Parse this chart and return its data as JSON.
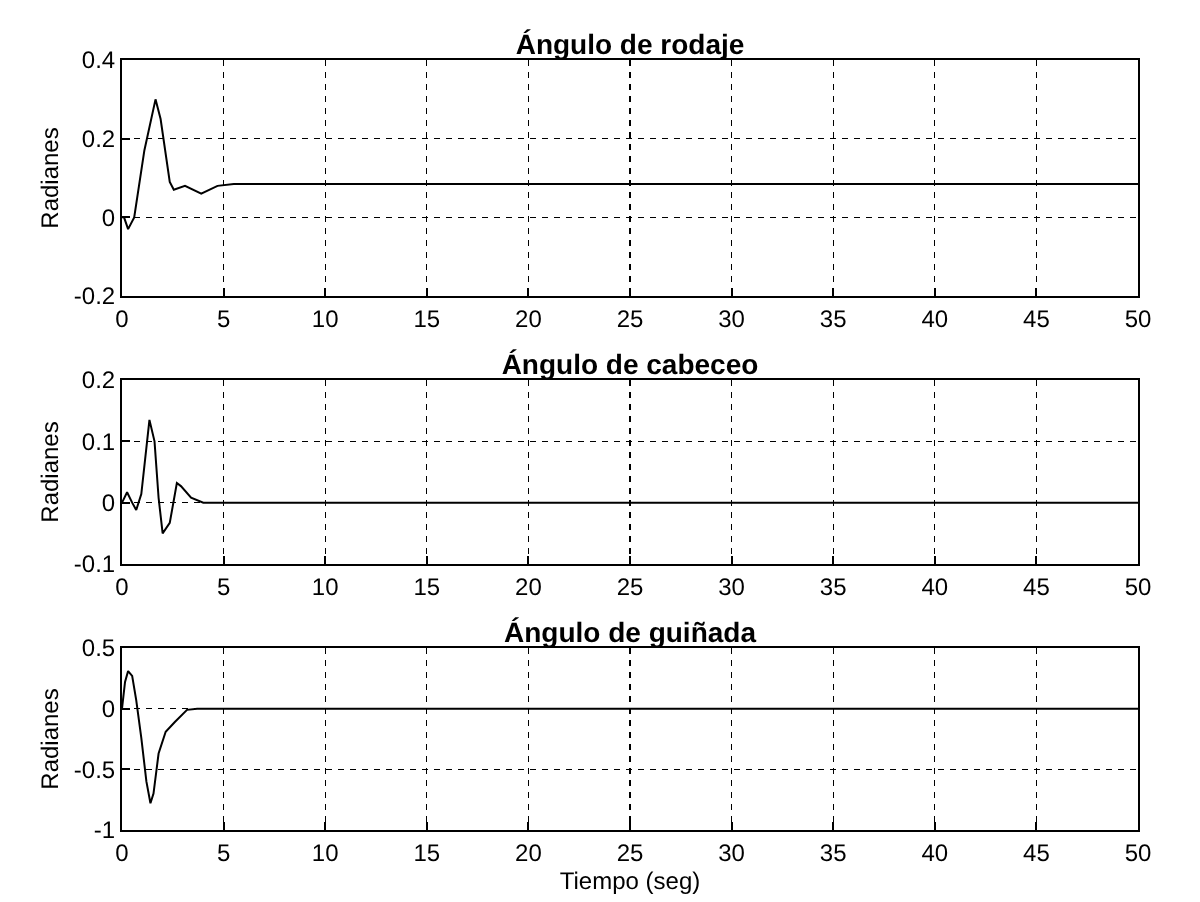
{
  "chart_data": [
    {
      "type": "line",
      "title": "Ángulo de rodaje",
      "ylabel": "Radianes",
      "x": [
        0,
        0.1,
        0.3,
        0.6,
        1.1,
        1.65,
        1.9,
        2.35,
        2.55,
        3.1,
        3.9,
        4.7,
        5.5,
        50
      ],
      "series": [
        {
          "color": "#000000",
          "values": [
            0,
            0,
            -0.03,
            0,
            0.17,
            0.3,
            0.25,
            0.09,
            0.07,
            0.08,
            0.06,
            0.08,
            0.085,
            0.085
          ]
        }
      ],
      "xlim": [
        0,
        50
      ],
      "xticks": [
        0,
        5,
        10,
        15,
        20,
        25,
        30,
        35,
        40,
        45,
        50
      ],
      "ylim": [
        -0.2,
        0.4
      ],
      "yticks": [
        -0.2,
        0,
        0.2,
        0.4
      ],
      "grid": true
    },
    {
      "type": "line",
      "title": "Ángulo de cabeceo",
      "ylabel": "Radianes",
      "x": [
        0,
        0.25,
        0.5,
        0.7,
        0.95,
        1.35,
        1.6,
        1.8,
        2.0,
        2.35,
        2.7,
        2.9,
        3.4,
        4,
        50
      ],
      "series": [
        {
          "color": "#000000",
          "values": [
            0,
            0.017,
            0,
            -0.012,
            0.014,
            0.135,
            0.1,
            0.008,
            -0.05,
            -0.033,
            0.032,
            0.027,
            0.008,
            0,
            0
          ]
        }
      ],
      "xlim": [
        0,
        50
      ],
      "xticks": [
        0,
        5,
        10,
        15,
        20,
        25,
        30,
        35,
        40,
        45,
        50
      ],
      "ylim": [
        -0.1,
        0.2
      ],
      "yticks": [
        -0.1,
        0,
        0.1,
        0.2
      ],
      "grid": true
    },
    {
      "type": "line",
      "title": "Ángulo de guiñada",
      "xlabel": "Tiempo (seg)",
      "ylabel": "Radianes",
      "x": [
        0,
        0.15,
        0.3,
        0.5,
        0.7,
        0.95,
        1.2,
        1.4,
        1.55,
        1.8,
        2.15,
        2.6,
        3.2,
        3.7,
        50
      ],
      "series": [
        {
          "color": "#000000",
          "values": [
            0,
            0.22,
            0.31,
            0.27,
            0.07,
            -0.24,
            -0.6,
            -0.78,
            -0.7,
            -0.37,
            -0.19,
            -0.11,
            -0.01,
            0,
            0
          ]
        }
      ],
      "xlim": [
        0,
        50
      ],
      "xticks": [
        0,
        5,
        10,
        15,
        20,
        25,
        30,
        35,
        40,
        45,
        50
      ],
      "ylim": [
        -1,
        0.5
      ],
      "yticks": [
        -1,
        -0.5,
        0,
        0.5
      ],
      "grid": true
    }
  ]
}
